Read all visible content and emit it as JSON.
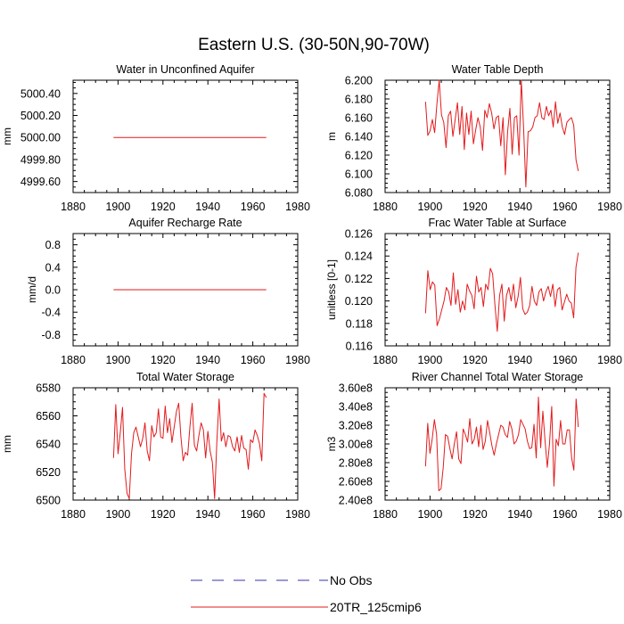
{
  "figure_title": "Eastern U.S. (30-50N,90-70W)",
  "legend": [
    {
      "label": "No Obs",
      "color": "#3333aa",
      "style": "dashed"
    },
    {
      "label": "20TR_125cmip6",
      "color": "#e31a1c",
      "style": "solid"
    }
  ],
  "chart_data": [
    {
      "type": "line",
      "title": "Water in Unconfined Aquifer",
      "ylabel": "mm",
      "xlim": [
        1880,
        1980
      ],
      "ylim": [
        4999.5,
        5000.52
      ],
      "xticks": [
        1880,
        1900,
        1920,
        1940,
        1960,
        1980
      ],
      "xtick_labels": [
        "1880",
        "1900",
        "1920",
        "1940",
        "1960",
        "1980"
      ],
      "yticks": [
        4999.6,
        4999.8,
        5000.0,
        5000.2,
        5000.4
      ],
      "ytick_labels": [
        "4999.60",
        "4999.80",
        "5000.00",
        "5000.20",
        "5000.40"
      ],
      "series": [
        {
          "x_start": 1898,
          "x_end": 1966,
          "values": [
            5000.0,
            5000.0
          ]
        }
      ]
    },
    {
      "type": "line",
      "title": "Water Table Depth",
      "ylabel": "m",
      "xlim": [
        1880,
        1980
      ],
      "ylim": [
        6.08,
        6.2
      ],
      "xticks": [
        1880,
        1900,
        1920,
        1940,
        1960,
        1980
      ],
      "xtick_labels": [
        "1880",
        "1900",
        "1920",
        "1940",
        "1960",
        "1980"
      ],
      "yticks": [
        6.08,
        6.1,
        6.12,
        6.14,
        6.16,
        6.18,
        6.2
      ],
      "ytick_labels": [
        "6.080",
        "6.100",
        "6.120",
        "6.140",
        "6.160",
        "6.180",
        "6.200"
      ],
      "series": [
        {
          "x_start": 1898,
          "x_end": 1966,
          "values": [
            6.177,
            6.141,
            6.146,
            6.158,
            6.144,
            6.175,
            6.2,
            6.163,
            6.155,
            6.128,
            6.162,
            6.167,
            6.14,
            6.158,
            6.176,
            6.142,
            6.172,
            6.126,
            6.165,
            6.142,
            6.167,
            6.132,
            6.147,
            6.16,
            6.15,
            6.125,
            6.168,
            6.16,
            6.175,
            6.165,
            6.148,
            6.16,
            6.162,
            6.13,
            6.16,
            6.099,
            6.145,
            6.17,
            6.121,
            6.16,
            6.162,
            6.12,
            6.2,
            6.15,
            6.086,
            6.145,
            6.146,
            6.15,
            6.16,
            6.162,
            6.176,
            6.16,
            6.158,
            6.172,
            6.162,
            6.168,
            6.15,
            6.177,
            6.154,
            6.165,
            6.15,
            6.142,
            6.155,
            6.158,
            6.16,
            6.152,
            6.115,
            6.103
          ]
        }
      ]
    },
    {
      "type": "line",
      "title": "Aquifer Recharge Rate",
      "ylabel": "mm/d",
      "xlim": [
        1880,
        1980
      ],
      "ylim": [
        -1.0,
        1.0
      ],
      "xticks": [
        1880,
        1900,
        1920,
        1940,
        1960,
        1980
      ],
      "xtick_labels": [
        "1880",
        "1900",
        "1920",
        "1940",
        "1960",
        "1980"
      ],
      "yticks": [
        -0.8,
        -0.4,
        0.0,
        0.4,
        0.8
      ],
      "ytick_labels": [
        "-0.8",
        "-0.4",
        "0.0",
        "0.4",
        "0.8"
      ],
      "series": [
        {
          "x_start": 1898,
          "x_end": 1966,
          "values": [
            0.0,
            0.0
          ]
        }
      ]
    },
    {
      "type": "line",
      "title": "Frac Water Table at Surface",
      "ylabel": "unitless [0-1]",
      "xlim": [
        1880,
        1980
      ],
      "ylim": [
        0.116,
        0.126
      ],
      "xticks": [
        1880,
        1900,
        1920,
        1940,
        1960,
        1980
      ],
      "xtick_labels": [
        "1880",
        "1900",
        "1920",
        "1940",
        "1960",
        "1980"
      ],
      "yticks": [
        0.116,
        0.118,
        0.12,
        0.122,
        0.124,
        0.126
      ],
      "ytick_labels": [
        "0.116",
        "0.118",
        "0.120",
        "0.122",
        "0.124",
        "0.126"
      ],
      "series": [
        {
          "x_start": 1898,
          "x_end": 1966,
          "values": [
            0.1189,
            0.1227,
            0.121,
            0.1217,
            0.1214,
            0.1178,
            0.1184,
            0.1192,
            0.12,
            0.1212,
            0.1208,
            0.1196,
            0.1225,
            0.1197,
            0.121,
            0.119,
            0.12,
            0.1192,
            0.1215,
            0.1209,
            0.1205,
            0.1193,
            0.1222,
            0.1208,
            0.1212,
            0.1195,
            0.1215,
            0.121,
            0.1229,
            0.1224,
            0.1196,
            0.1173,
            0.1205,
            0.1215,
            0.1182,
            0.1205,
            0.1212,
            0.12,
            0.1215,
            0.1194,
            0.1204,
            0.1221,
            0.1193,
            0.1188,
            0.119,
            0.1196,
            0.1213,
            0.12,
            0.1196,
            0.1208,
            0.1211,
            0.12,
            0.1208,
            0.1213,
            0.1204,
            0.1215,
            0.1195,
            0.121,
            0.1212,
            0.1192,
            0.1199,
            0.1206,
            0.12,
            0.1198,
            0.1185,
            0.123,
            0.1243
          ]
        }
      ]
    },
    {
      "type": "line",
      "title": "Total Water Storage",
      "ylabel": "mm",
      "xlim": [
        1880,
        1980
      ],
      "ylim": [
        6500,
        6580
      ],
      "xticks": [
        1880,
        1900,
        1920,
        1940,
        1960,
        1980
      ],
      "xtick_labels": [
        "1880",
        "1900",
        "1920",
        "1940",
        "1960",
        "1980"
      ],
      "yticks": [
        6500,
        6520,
        6540,
        6560,
        6580
      ],
      "ytick_labels": [
        "6500",
        "6520",
        "6540",
        "6560",
        "6580"
      ],
      "series": [
        {
          "x_start": 1898,
          "x_end": 1966,
          "values": [
            6530,
            6568,
            6533,
            6548,
            6566,
            6522,
            6505,
            6501,
            6533,
            6548,
            6552,
            6545,
            6538,
            6544,
            6555,
            6535,
            6528,
            6553,
            6545,
            6548,
            6565,
            6545,
            6544,
            6567,
            6548,
            6558,
            6541,
            6552,
            6563,
            6569,
            6545,
            6528,
            6534,
            6532,
            6552,
            6569,
            6539,
            6535,
            6546,
            6555,
            6550,
            6530,
            6549,
            6535,
            6527,
            6501,
            6542,
            6572,
            6542,
            6548,
            6538,
            6546,
            6545,
            6538,
            6535,
            6545,
            6534,
            6546,
            6537,
            6536,
            6522,
            6543,
            6541,
            6550,
            6546,
            6540,
            6528,
            6576,
            6573
          ]
        }
      ]
    },
    {
      "type": "line",
      "title": "River Channel Total Water Storage",
      "ylabel": "m3",
      "xlim": [
        1880,
        1980
      ],
      "ylim": [
        240000000,
        360000000
      ],
      "xticks": [
        1880,
        1900,
        1920,
        1940,
        1960,
        1980
      ],
      "xtick_labels": [
        "1880",
        "1900",
        "1920",
        "1940",
        "1960",
        "1980"
      ],
      "yticks": [
        240000000,
        260000000,
        280000000,
        300000000,
        320000000,
        340000000,
        360000000
      ],
      "ytick_labels": [
        "2.40e8",
        "2.60e8",
        "2.80e8",
        "3.00e8",
        "3.20e8",
        "3.40e8",
        "3.60e8"
      ],
      "series": [
        {
          "x_start": 1898,
          "x_end": 1966,
          "values": [
            276000000,
            322000000,
            290000000,
            305000000,
            326000000,
            310000000,
            250000000,
            252000000,
            275000000,
            310000000,
            308000000,
            295000000,
            284000000,
            300000000,
            313000000,
            284000000,
            279000000,
            316000000,
            310000000,
            302000000,
            327000000,
            300000000,
            305000000,
            318000000,
            297000000,
            320000000,
            294000000,
            303000000,
            325000000,
            312000000,
            298000000,
            288000000,
            300000000,
            310000000,
            320000000,
            318000000,
            310000000,
            307000000,
            324000000,
            316000000,
            300000000,
            303000000,
            310000000,
            326000000,
            321000000,
            316000000,
            303000000,
            295000000,
            296000000,
            321000000,
            285000000,
            350000000,
            296000000,
            335000000,
            303000000,
            275000000,
            300000000,
            340000000,
            255000000,
            305000000,
            298000000,
            325000000,
            300000000,
            300000000,
            315000000,
            315000000,
            285000000,
            272000000,
            348000000,
            318000000
          ]
        }
      ]
    }
  ]
}
